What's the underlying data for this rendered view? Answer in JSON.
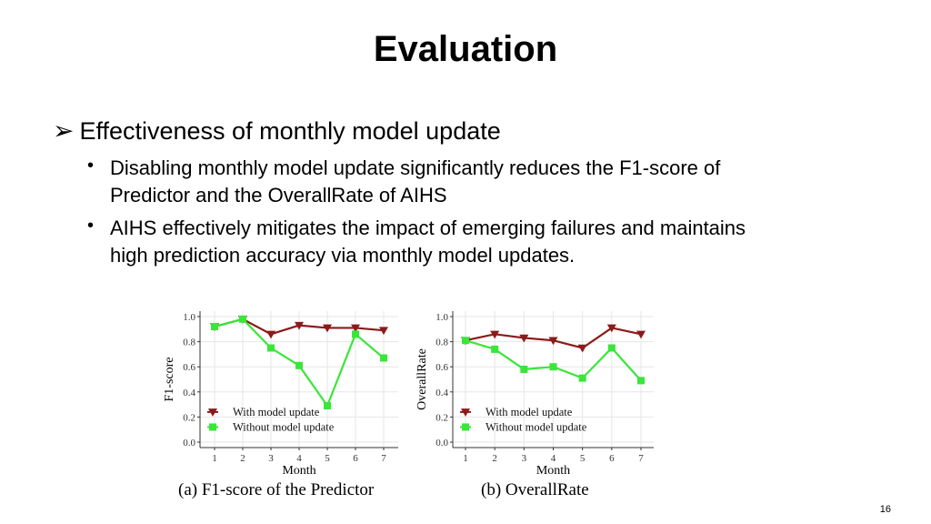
{
  "slide": {
    "title": "Evaluation",
    "bullet": "Effectiveness of monthly model update",
    "sub_bullets": [
      "Disabling monthly model update significantly reduces the F1-score of Predictor and the OverallRate of AIHS",
      "AIHS effectively mitigates the impact of emerging failures and maintains high prediction accuracy via monthly model updates."
    ],
    "page_number": "16"
  },
  "colors": {
    "with": "#8b1a1a",
    "without": "#39e639",
    "grid": "#e6e6e6"
  },
  "chart_data": [
    {
      "type": "line",
      "caption": "(a) F1-score of the Predictor",
      "xlabel": "Month",
      "ylabel": "F1-score",
      "x": [
        1,
        2,
        3,
        4,
        5,
        6,
        7
      ],
      "ylim": [
        0,
        1.0
      ],
      "yticks": [
        "0.0",
        "0.2",
        "0.4",
        "0.6",
        "0.8",
        "1.0"
      ],
      "grid": true,
      "legend_position": "bottom-left",
      "series": [
        {
          "name": "With model update",
          "values": [
            0.92,
            0.98,
            0.86,
            0.93,
            0.91,
            0.91,
            0.89
          ]
        },
        {
          "name": "Without model update",
          "values": [
            0.92,
            0.98,
            0.75,
            0.61,
            0.29,
            0.86,
            0.67
          ]
        }
      ]
    },
    {
      "type": "line",
      "caption": "(b) OverallRate",
      "xlabel": "Month",
      "ylabel": "OverallRate",
      "x": [
        1,
        2,
        3,
        4,
        5,
        6,
        7
      ],
      "ylim": [
        0,
        1.0
      ],
      "yticks": [
        "0.0",
        "0.2",
        "0.4",
        "0.6",
        "0.8",
        "1.0"
      ],
      "grid": true,
      "legend_position": "bottom-left",
      "series": [
        {
          "name": "With model update",
          "values": [
            0.81,
            0.86,
            0.83,
            0.81,
            0.75,
            0.91,
            0.86
          ]
        },
        {
          "name": "Without model update",
          "values": [
            0.81,
            0.74,
            0.58,
            0.6,
            0.51,
            0.75,
            0.49
          ]
        }
      ]
    }
  ]
}
